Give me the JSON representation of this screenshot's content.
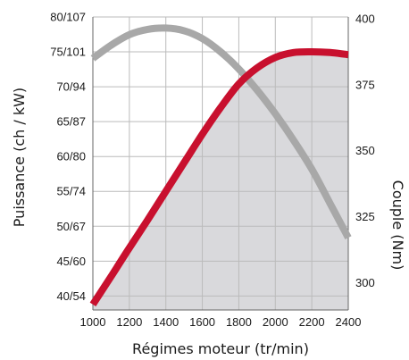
{
  "chart_data": {
    "type": "line",
    "xlabel": "Régimes moteur (tr/min)",
    "ylabel": "Puissance (ch / kW)",
    "y2label": "Couple (Nm)",
    "x_ticks": [
      1000,
      1200,
      1400,
      1600,
      1800,
      2000,
      2200,
      2400
    ],
    "xlim": [
      1000,
      2400
    ],
    "y_ticks": [
      {
        "value": 40,
        "label": "40/54"
      },
      {
        "value": 45,
        "label": "45/60"
      },
      {
        "value": 50,
        "label": "50/67"
      },
      {
        "value": 55,
        "label": "55/74"
      },
      {
        "value": 60,
        "label": "60/80"
      },
      {
        "value": 65,
        "label": "65/87"
      },
      {
        "value": 70,
        "label": "70/94"
      },
      {
        "value": 75,
        "label": "75/101"
      },
      {
        "value": 80,
        "label": "80/107"
      }
    ],
    "ylim": [
      38,
      80
    ],
    "y2_ticks": [
      300,
      325,
      350,
      375,
      400
    ],
    "y2lim": [
      289.6,
      400.7
    ],
    "grid": true,
    "colors": {
      "power": "#c8102e",
      "torque": "#a8a8a8",
      "fill": "#d9d9dc",
      "grid": "#bbbbbb",
      "axis": "#666666"
    },
    "series": [
      {
        "key": "power",
        "axis": "left",
        "x": [
          1000,
          1100,
          1200,
          1300,
          1400,
          1500,
          1600,
          1700,
          1800,
          1900,
          2000,
          2100,
          2200,
          2300,
          2400
        ],
        "values": [
          38.8,
          42.8,
          46.9,
          50.9,
          55.0,
          59.1,
          63.2,
          67.0,
          70.4,
          72.7,
          74.2,
          74.9,
          75.0,
          74.9,
          74.6
        ]
      },
      {
        "key": "torque",
        "axis": "right",
        "x": [
          1000,
          1100,
          1200,
          1300,
          1400,
          1500,
          1600,
          1700,
          1800,
          1900,
          2000,
          2100,
          2200,
          2300,
          2400
        ],
        "values": [
          385,
          390,
          394,
          396,
          396.5,
          395.5,
          392.5,
          387.5,
          381,
          373,
          364,
          354,
          343,
          330,
          317
        ]
      }
    ]
  }
}
